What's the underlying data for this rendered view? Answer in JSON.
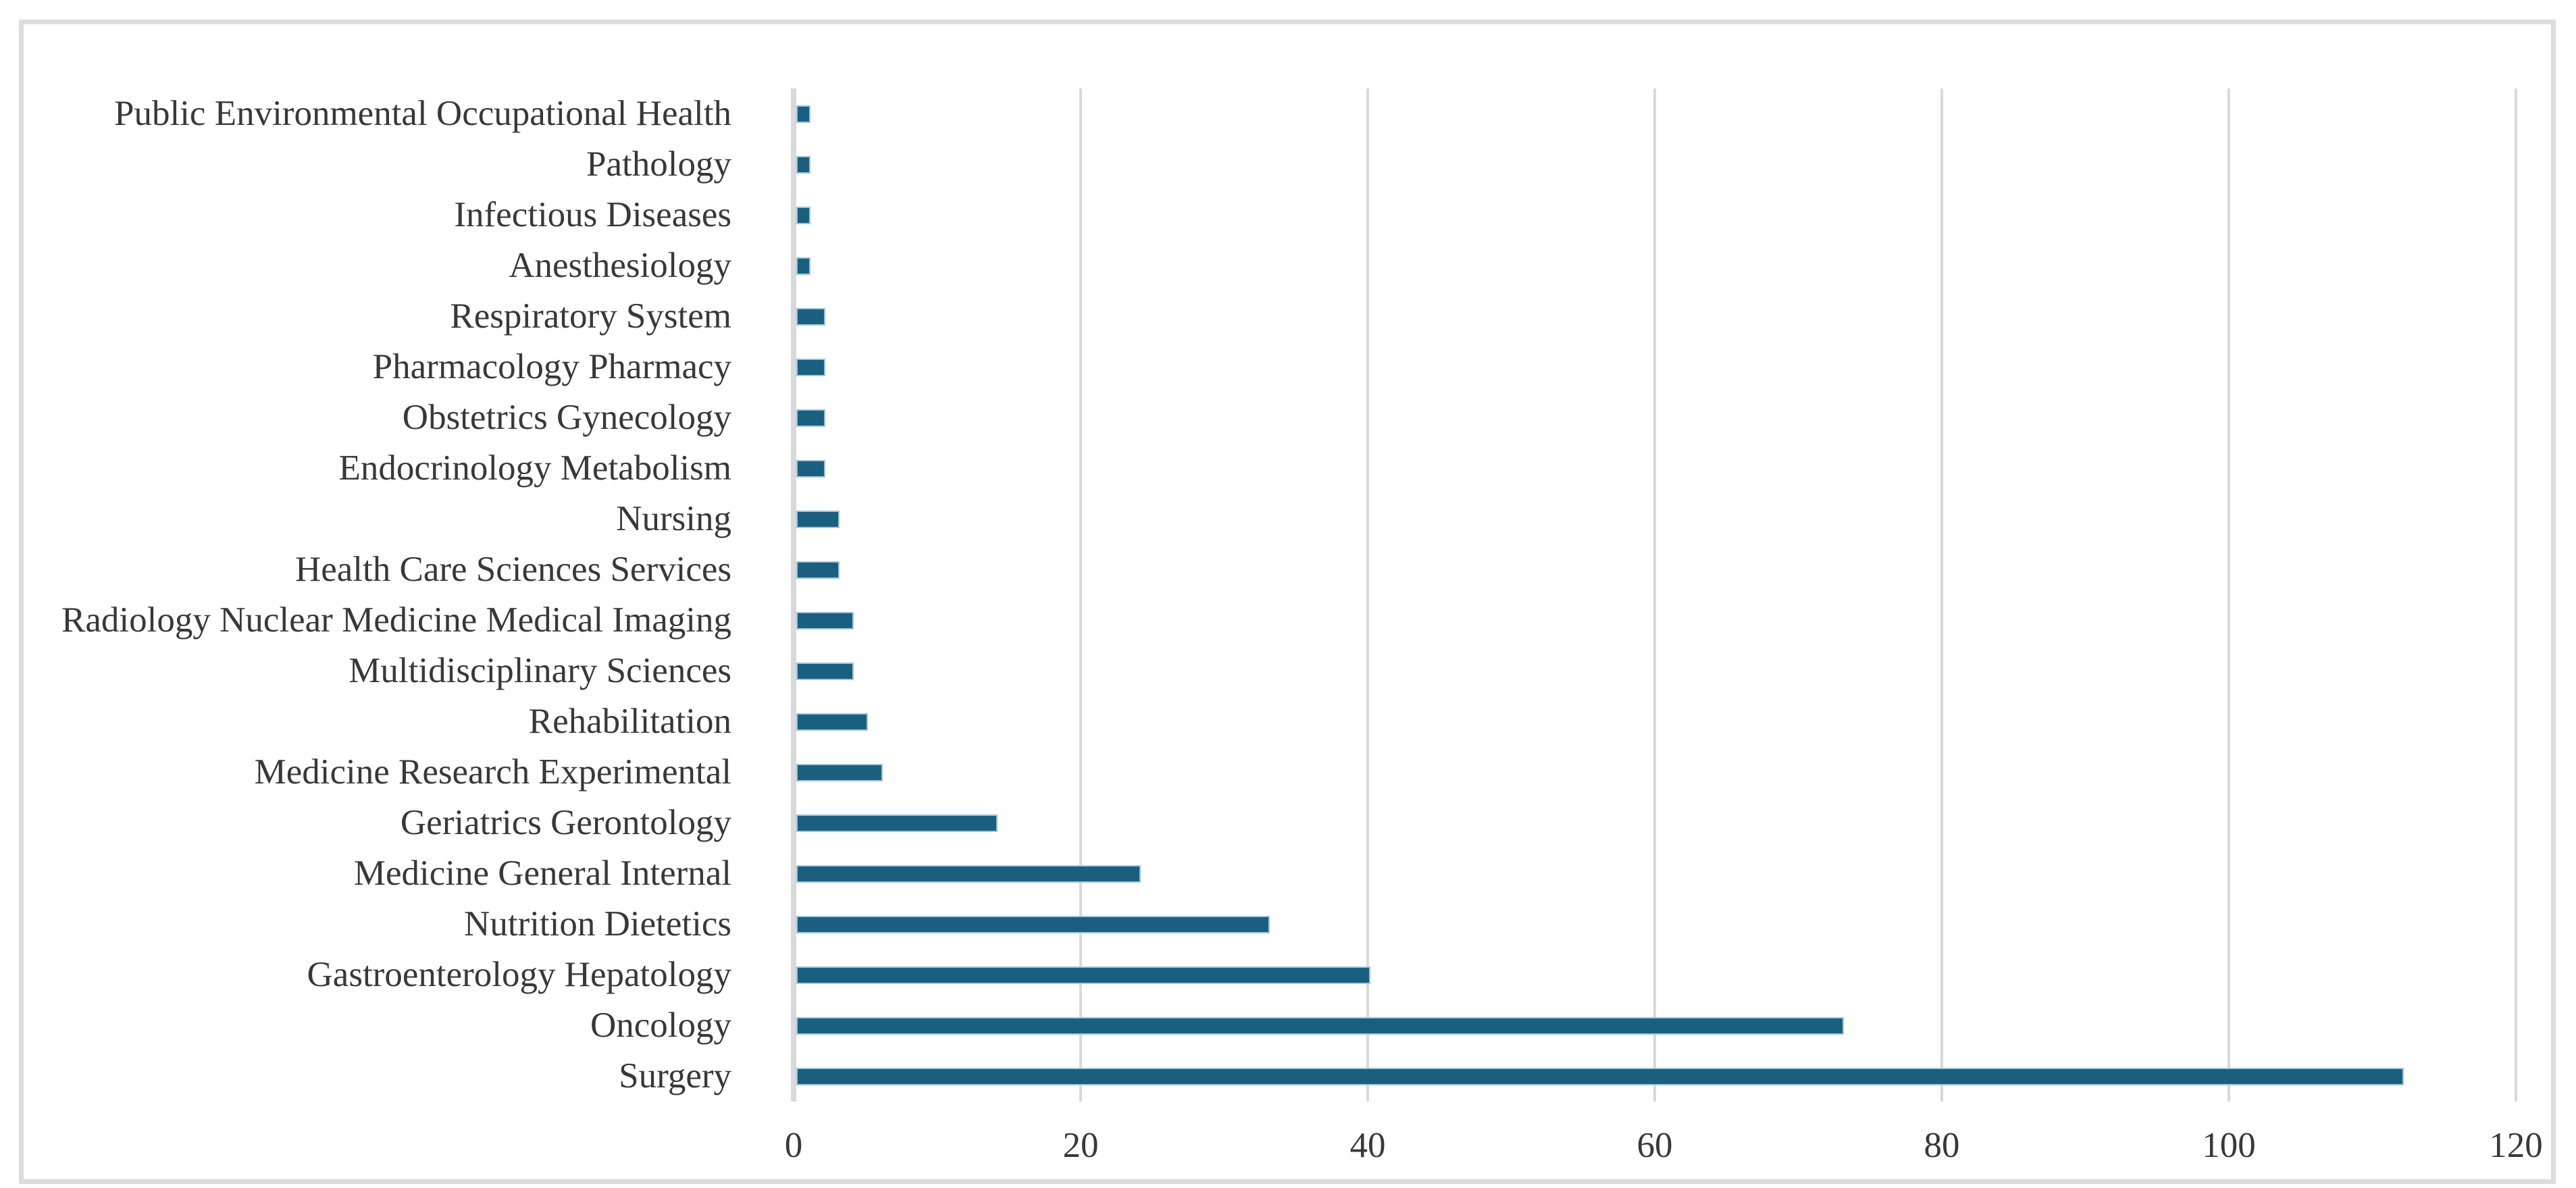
{
  "figure": {
    "background_color": "#ffffff",
    "frame_color": "#dcdcdc",
    "text_color": "#383838"
  },
  "chart_data": {
    "type": "bar",
    "orientation": "horizontal",
    "title": "",
    "xlabel": "",
    "ylabel": "",
    "categories": [
      "Public Environmental Occupational Health",
      "Pathology",
      "Infectious Diseases",
      "Anesthesiology",
      "Respiratory System",
      "Pharmacology Pharmacy",
      "Obstetrics Gynecology",
      "Endocrinology Metabolism",
      "Nursing",
      "Health Care Sciences Services",
      "Radiology Nuclear Medicine Medical Imaging",
      "Multidisciplinary Sciences",
      "Rehabilitation",
      "Medicine Research Experimental",
      "Geriatrics Gerontology",
      "Medicine General Internal",
      "Nutrition Dietetics",
      "Gastroenterology Hepatology",
      "Oncology",
      "Surgery"
    ],
    "values": [
      1,
      1,
      1,
      1,
      2,
      2,
      2,
      2,
      3,
      3,
      4,
      4,
      5,
      6,
      14,
      24,
      33,
      40,
      73,
      112
    ],
    "xlim": [
      0,
      120
    ],
    "x_ticks": [
      "0",
      "20",
      "40",
      "60",
      "80",
      "100",
      "120"
    ],
    "x_tick_values": [
      0,
      20,
      40,
      60,
      80,
      100,
      120
    ],
    "grid": "vertical",
    "legend": "none",
    "bar_color": "#1a5f80",
    "bar_border_color": "#9ec6d8",
    "gridline_color": "#d9d9d9"
  }
}
